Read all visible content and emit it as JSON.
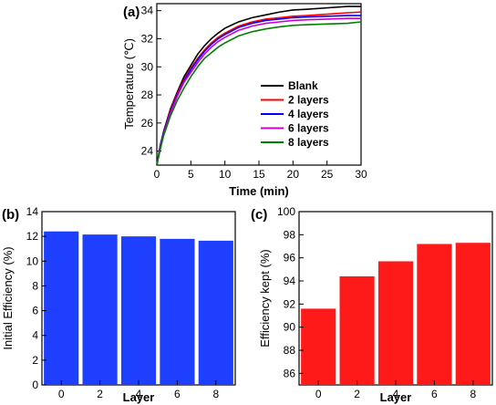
{
  "chart_data": [
    {
      "panel_label": "(a)",
      "type": "line",
      "xlabel": "Time (min)",
      "ylabel": "Temperature (℃)",
      "xlim": [
        0,
        30
      ],
      "ylim": [
        23,
        34.5
      ],
      "xticks": [
        0,
        5,
        10,
        15,
        20,
        25,
        30
      ],
      "yticks": [
        24,
        26,
        28,
        30,
        32,
        34
      ],
      "legend": "inside-bottom-right",
      "series": [
        {
          "name": "Blank",
          "color": "#000000",
          "x": [
            0,
            0.5,
            1,
            2,
            3,
            4,
            5,
            6,
            7,
            8,
            9,
            10,
            12,
            14,
            16,
            18,
            20,
            22,
            25,
            28,
            30
          ],
          "y": [
            23.0,
            24.4,
            25.4,
            27.0,
            28.2,
            29.3,
            30.1,
            30.9,
            31.5,
            32.0,
            32.4,
            32.75,
            33.2,
            33.5,
            33.7,
            33.9,
            34.05,
            34.1,
            34.2,
            34.3,
            34.3
          ]
        },
        {
          "name": "2 layers",
          "color": "#ff0000",
          "x": [
            0,
            0.5,
            1,
            2,
            3,
            4,
            5,
            6,
            7,
            8,
            9,
            10,
            12,
            14,
            16,
            18,
            20,
            22,
            25,
            28,
            30
          ],
          "y": [
            23.0,
            24.3,
            25.3,
            26.9,
            28.1,
            29.1,
            29.9,
            30.6,
            31.2,
            31.7,
            32.1,
            32.4,
            32.9,
            33.2,
            33.4,
            33.5,
            33.6,
            33.65,
            33.75,
            33.85,
            33.9
          ]
        },
        {
          "name": "4 layers",
          "color": "#0000ff",
          "x": [
            0,
            0.5,
            1,
            2,
            3,
            4,
            5,
            6,
            7,
            8,
            9,
            10,
            12,
            14,
            16,
            18,
            20,
            22,
            25,
            28,
            30
          ],
          "y": [
            23.0,
            24.3,
            25.3,
            26.8,
            28.0,
            29.0,
            29.8,
            30.5,
            31.1,
            31.6,
            32.0,
            32.3,
            32.8,
            33.1,
            33.3,
            33.4,
            33.5,
            33.55,
            33.6,
            33.65,
            33.65
          ]
        },
        {
          "name": "6 layers",
          "color": "#cc00cc",
          "x": [
            0,
            0.5,
            1,
            2,
            3,
            4,
            5,
            6,
            7,
            8,
            9,
            10,
            12,
            14,
            16,
            18,
            20,
            22,
            25,
            28,
            30
          ],
          "y": [
            23.0,
            24.2,
            25.2,
            26.7,
            27.9,
            28.9,
            29.6,
            30.3,
            30.9,
            31.4,
            31.8,
            32.1,
            32.6,
            32.9,
            33.1,
            33.2,
            33.3,
            33.35,
            33.4,
            33.45,
            33.45
          ]
        },
        {
          "name": "8 layers",
          "color": "#008000",
          "x": [
            0,
            0.5,
            1,
            2,
            3,
            4,
            5,
            6,
            7,
            8,
            9,
            10,
            12,
            14,
            16,
            18,
            20,
            22,
            25,
            28,
            30
          ],
          "y": [
            23.0,
            24.1,
            25.1,
            26.5,
            27.6,
            28.5,
            29.3,
            30.0,
            30.6,
            31.0,
            31.4,
            31.7,
            32.2,
            32.5,
            32.7,
            32.85,
            32.95,
            33.0,
            33.05,
            33.1,
            33.2
          ]
        }
      ]
    },
    {
      "panel_label": "(b)",
      "type": "bar",
      "xlabel": "Layer",
      "ylabel": "Initial Efficiency (%)",
      "categories": [
        "0",
        "2",
        "4",
        "6",
        "8"
      ],
      "values": [
        12.4,
        12.15,
        12.0,
        11.8,
        11.65
      ],
      "color": "#1f3fff",
      "ylim": [
        0,
        14
      ],
      "yticks": [
        0,
        2,
        4,
        6,
        8,
        10,
        12,
        14
      ]
    },
    {
      "panel_label": "(c)",
      "type": "bar",
      "xlabel": "Layer",
      "ylabel": "Efficiency kept (%)",
      "categories": [
        "0",
        "2",
        "4",
        "6",
        "8"
      ],
      "values": [
        91.6,
        94.4,
        95.7,
        97.2,
        97.3
      ],
      "color": "#ff1a1a",
      "ylim": [
        85,
        100
      ],
      "yticks": [
        86,
        88,
        90,
        92,
        94,
        96,
        98,
        100
      ]
    }
  ]
}
